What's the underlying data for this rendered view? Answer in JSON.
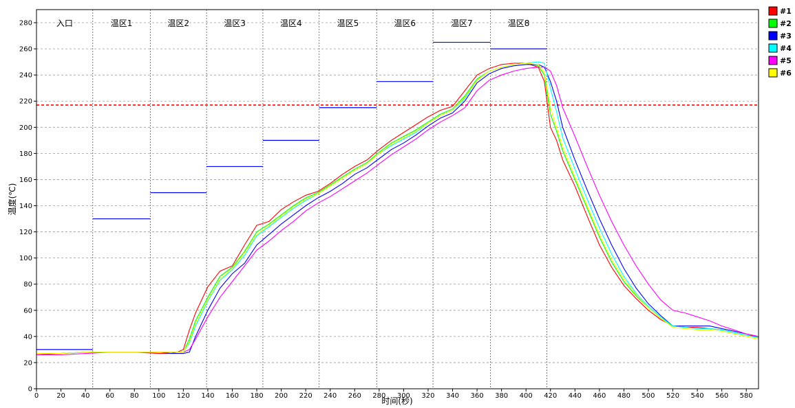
{
  "chart_data": {
    "type": "line",
    "xlabel": "时间(秒)",
    "ylabel": "温度(℃)",
    "xlim": [
      0,
      590
    ],
    "ylim": [
      0,
      290
    ],
    "xticks": [
      0,
      20,
      40,
      60,
      80,
      100,
      120,
      140,
      160,
      180,
      200,
      220,
      240,
      260,
      280,
      300,
      320,
      340,
      360,
      380,
      400,
      420,
      440,
      460,
      480,
      500,
      520,
      540,
      560,
      580
    ],
    "yticks": [
      0,
      20,
      40,
      60,
      80,
      100,
      120,
      140,
      160,
      180,
      200,
      220,
      240,
      260,
      280
    ],
    "grid": true,
    "legend_position": "top-right-outside",
    "threshold": {
      "value": 217,
      "color": "#ff0000"
    },
    "zones": [
      {
        "label": "入口",
        "start": 0,
        "end": 46,
        "setpoint": 30
      },
      {
        "label": "温区1",
        "start": 46,
        "end": 93,
        "setpoint": 130
      },
      {
        "label": "温区2",
        "start": 93,
        "end": 139,
        "setpoint": 150
      },
      {
        "label": "温区3",
        "start": 139,
        "end": 185,
        "setpoint": 170
      },
      {
        "label": "温区4",
        "start": 185,
        "end": 231,
        "setpoint": 190
      },
      {
        "label": "温区5",
        "start": 231,
        "end": 278,
        "setpoint": 215
      },
      {
        "label": "温区6",
        "start": 278,
        "end": 324,
        "setpoint": 235
      },
      {
        "label": "温区7",
        "start": 324,
        "end": 371,
        "setpoint": 265
      },
      {
        "label": "温区8",
        "start": 371,
        "end": 417,
        "setpoint": 260
      }
    ],
    "setpoint_color": "#0000ff",
    "series": [
      {
        "name": "#1",
        "color": "#ff0000",
        "x": [
          0,
          20,
          40,
          60,
          80,
          100,
          110,
          115,
          120,
          125,
          130,
          140,
          150,
          160,
          170,
          180,
          190,
          200,
          210,
          220,
          230,
          240,
          250,
          260,
          270,
          280,
          290,
          300,
          310,
          320,
          330,
          340,
          350,
          360,
          370,
          380,
          390,
          400,
          410,
          415,
          420,
          425,
          430,
          440,
          450,
          460,
          470,
          480,
          490,
          500,
          510,
          520,
          530,
          540,
          550,
          560,
          570,
          580,
          590
        ],
        "y": [
          26,
          27,
          28,
          28,
          28,
          27,
          27,
          28,
          30,
          45,
          58,
          78,
          90,
          94,
          110,
          125,
          128,
          137,
          143,
          148,
          151,
          157,
          164,
          170,
          175,
          183,
          190,
          196,
          202,
          208,
          213,
          216,
          228,
          240,
          245,
          248,
          249,
          249,
          246,
          235,
          200,
          190,
          175,
          155,
          132,
          110,
          93,
          79,
          69,
          60,
          53,
          48,
          47,
          47,
          46,
          45,
          43,
          41,
          40
        ]
      },
      {
        "name": "#2",
        "color": "#00ff00",
        "x": [
          0,
          20,
          40,
          60,
          80,
          100,
          110,
          115,
          120,
          125,
          130,
          140,
          150,
          160,
          170,
          180,
          190,
          200,
          210,
          220,
          230,
          240,
          250,
          260,
          270,
          280,
          290,
          300,
          310,
          320,
          330,
          340,
          350,
          360,
          370,
          380,
          390,
          400,
          410,
          415,
          420,
          425,
          430,
          440,
          450,
          460,
          470,
          480,
          490,
          500,
          510,
          520,
          530,
          540,
          550,
          560,
          570,
          580,
          590
        ],
        "y": [
          27,
          27,
          28,
          28,
          28,
          28,
          28,
          28,
          28,
          38,
          52,
          70,
          86,
          93,
          105,
          120,
          126,
          133,
          140,
          146,
          150,
          156,
          162,
          168,
          173,
          181,
          188,
          193,
          198,
          204,
          210,
          214,
          224,
          237,
          243,
          246,
          248,
          249,
          247,
          240,
          210,
          197,
          182,
          160,
          138,
          116,
          97,
          82,
          71,
          62,
          54,
          48,
          47,
          46,
          46,
          45,
          43,
          41,
          39
        ]
      },
      {
        "name": "#3",
        "color": "#0000ff",
        "x": [
          0,
          20,
          40,
          60,
          80,
          100,
          110,
          115,
          120,
          125,
          130,
          140,
          150,
          160,
          170,
          180,
          190,
          200,
          210,
          220,
          230,
          240,
          250,
          260,
          270,
          280,
          290,
          300,
          310,
          320,
          330,
          340,
          350,
          360,
          370,
          380,
          390,
          400,
          410,
          415,
          420,
          425,
          430,
          440,
          450,
          460,
          470,
          480,
          490,
          500,
          510,
          520,
          530,
          540,
          550,
          560,
          570,
          580,
          590
        ],
        "y": [
          27,
          27,
          28,
          28,
          28,
          28,
          27,
          27,
          27,
          28,
          40,
          60,
          77,
          88,
          96,
          110,
          118,
          126,
          133,
          140,
          146,
          151,
          157,
          164,
          169,
          176,
          183,
          188,
          194,
          201,
          207,
          211,
          220,
          234,
          241,
          245,
          247,
          248,
          248,
          246,
          235,
          220,
          200,
          175,
          152,
          130,
          110,
          92,
          77,
          65,
          56,
          48,
          48,
          48,
          48,
          46,
          44,
          42,
          40
        ]
      },
      {
        "name": "#4",
        "color": "#00ffff",
        "x": [
          0,
          20,
          40,
          60,
          80,
          100,
          110,
          115,
          120,
          125,
          130,
          140,
          150,
          160,
          170,
          180,
          190,
          200,
          210,
          220,
          230,
          240,
          250,
          260,
          270,
          280,
          290,
          300,
          310,
          320,
          330,
          340,
          350,
          360,
          370,
          380,
          390,
          400,
          410,
          415,
          420,
          425,
          430,
          440,
          450,
          460,
          470,
          480,
          490,
          500,
          510,
          520,
          530,
          540,
          550,
          560,
          570,
          580,
          590
        ],
        "y": [
          27,
          27,
          28,
          28,
          28,
          28,
          28,
          28,
          28,
          35,
          48,
          67,
          83,
          91,
          102,
          117,
          124,
          131,
          138,
          144,
          149,
          155,
          161,
          167,
          172,
          180,
          186,
          191,
          196,
          203,
          209,
          213,
          222,
          236,
          243,
          246,
          248,
          249,
          250,
          249,
          230,
          212,
          192,
          168,
          145,
          123,
          103,
          86,
          73,
          63,
          55,
          48,
          47,
          46,
          46,
          45,
          43,
          41,
          39
        ]
      },
      {
        "name": "#5",
        "color": "#ff00ff",
        "x": [
          0,
          20,
          40,
          60,
          80,
          100,
          110,
          115,
          120,
          125,
          130,
          140,
          150,
          160,
          170,
          180,
          190,
          200,
          210,
          220,
          230,
          240,
          250,
          260,
          270,
          280,
          290,
          300,
          310,
          320,
          330,
          340,
          350,
          360,
          370,
          380,
          390,
          400,
          410,
          415,
          420,
          425,
          430,
          440,
          450,
          460,
          470,
          480,
          490,
          500,
          510,
          520,
          530,
          540,
          550,
          560,
          570,
          580,
          590
        ],
        "y": [
          26,
          26,
          27,
          28,
          28,
          28,
          28,
          28,
          28,
          30,
          38,
          55,
          70,
          82,
          94,
          106,
          113,
          121,
          128,
          136,
          142,
          147,
          153,
          159,
          165,
          172,
          179,
          185,
          191,
          198,
          204,
          209,
          215,
          228,
          236,
          240,
          243,
          245,
          246,
          246,
          243,
          232,
          215,
          193,
          170,
          148,
          128,
          110,
          94,
          80,
          68,
          60,
          58,
          55,
          52,
          48,
          45,
          42,
          40
        ]
      },
      {
        "name": "#6",
        "color": "#ffff00",
        "x": [
          0,
          20,
          40,
          60,
          80,
          100,
          110,
          115,
          120,
          125,
          130,
          140,
          150,
          160,
          170,
          180,
          190,
          200,
          210,
          220,
          230,
          240,
          250,
          260,
          270,
          280,
          290,
          300,
          310,
          320,
          330,
          340,
          350,
          360,
          370,
          380,
          390,
          400,
          410,
          415,
          420,
          425,
          430,
          440,
          450,
          460,
          470,
          480,
          490,
          500,
          510,
          520,
          530,
          540,
          550,
          560,
          570,
          580,
          590
        ],
        "y": [
          27,
          27,
          28,
          28,
          28,
          28,
          28,
          28,
          28,
          36,
          50,
          68,
          84,
          92,
          104,
          118,
          125,
          132,
          139,
          145,
          149,
          155,
          161,
          167,
          172,
          180,
          187,
          192,
          197,
          203,
          209,
          213,
          223,
          236,
          243,
          246,
          248,
          249,
          248,
          242,
          215,
          200,
          185,
          162,
          140,
          118,
          99,
          84,
          72,
          62,
          54,
          47,
          46,
          45,
          45,
          44,
          42,
          40,
          38
        ]
      }
    ]
  }
}
